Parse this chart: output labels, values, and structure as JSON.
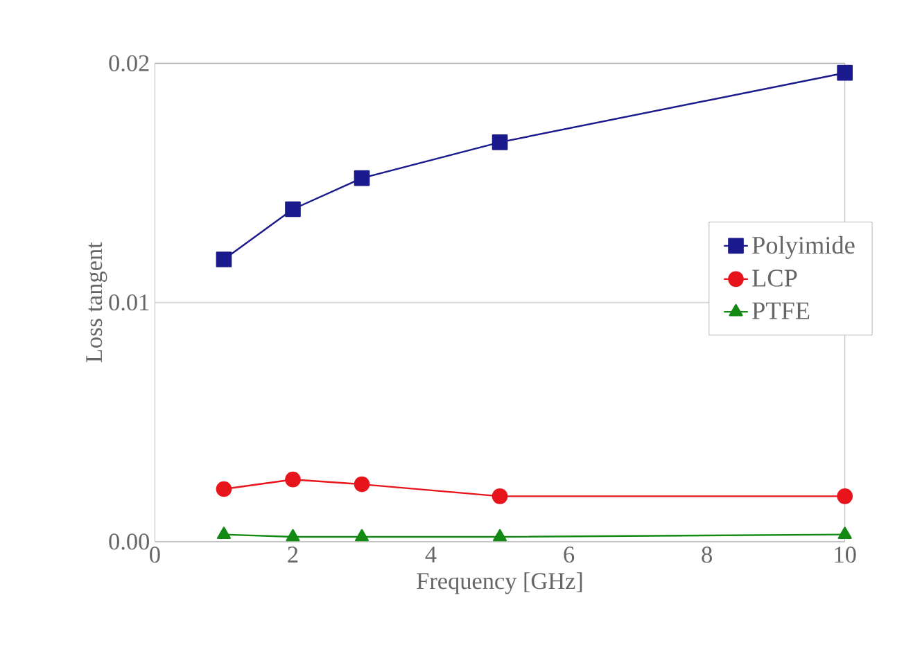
{
  "chart_data": {
    "type": "line",
    "xlabel": "Frequency [GHz]",
    "ylabel": "Loss tangent",
    "xlim": [
      0,
      10
    ],
    "xticks": [
      0,
      2,
      4,
      6,
      8,
      10
    ],
    "ylim": [
      0,
      0.02
    ],
    "yticks": [
      {
        "value": 0,
        "label": "0.00"
      },
      {
        "value": 0.01,
        "label": "0.01"
      },
      {
        "value": 0.02,
        "label": "0.02"
      }
    ],
    "x": [
      1,
      2,
      3,
      5,
      10
    ],
    "grid": "y",
    "legend": "right",
    "line_style": "solid",
    "series": [
      {
        "name": "Polyimide",
        "color": "#1a1a8c",
        "marker": "square",
        "values": [
          0.0118,
          0.0139,
          0.0152,
          0.0167,
          0.0196
        ]
      },
      {
        "name": "LCP",
        "color": "#e8141c",
        "marker": "circle",
        "values": [
          0.0022,
          0.0026,
          0.0024,
          0.0019,
          0.0019
        ]
      },
      {
        "name": "PTFE",
        "color": "#138a13",
        "marker": "triangle",
        "values": [
          0.0003,
          0.0002,
          0.0002,
          0.0002,
          0.0003
        ]
      }
    ]
  }
}
